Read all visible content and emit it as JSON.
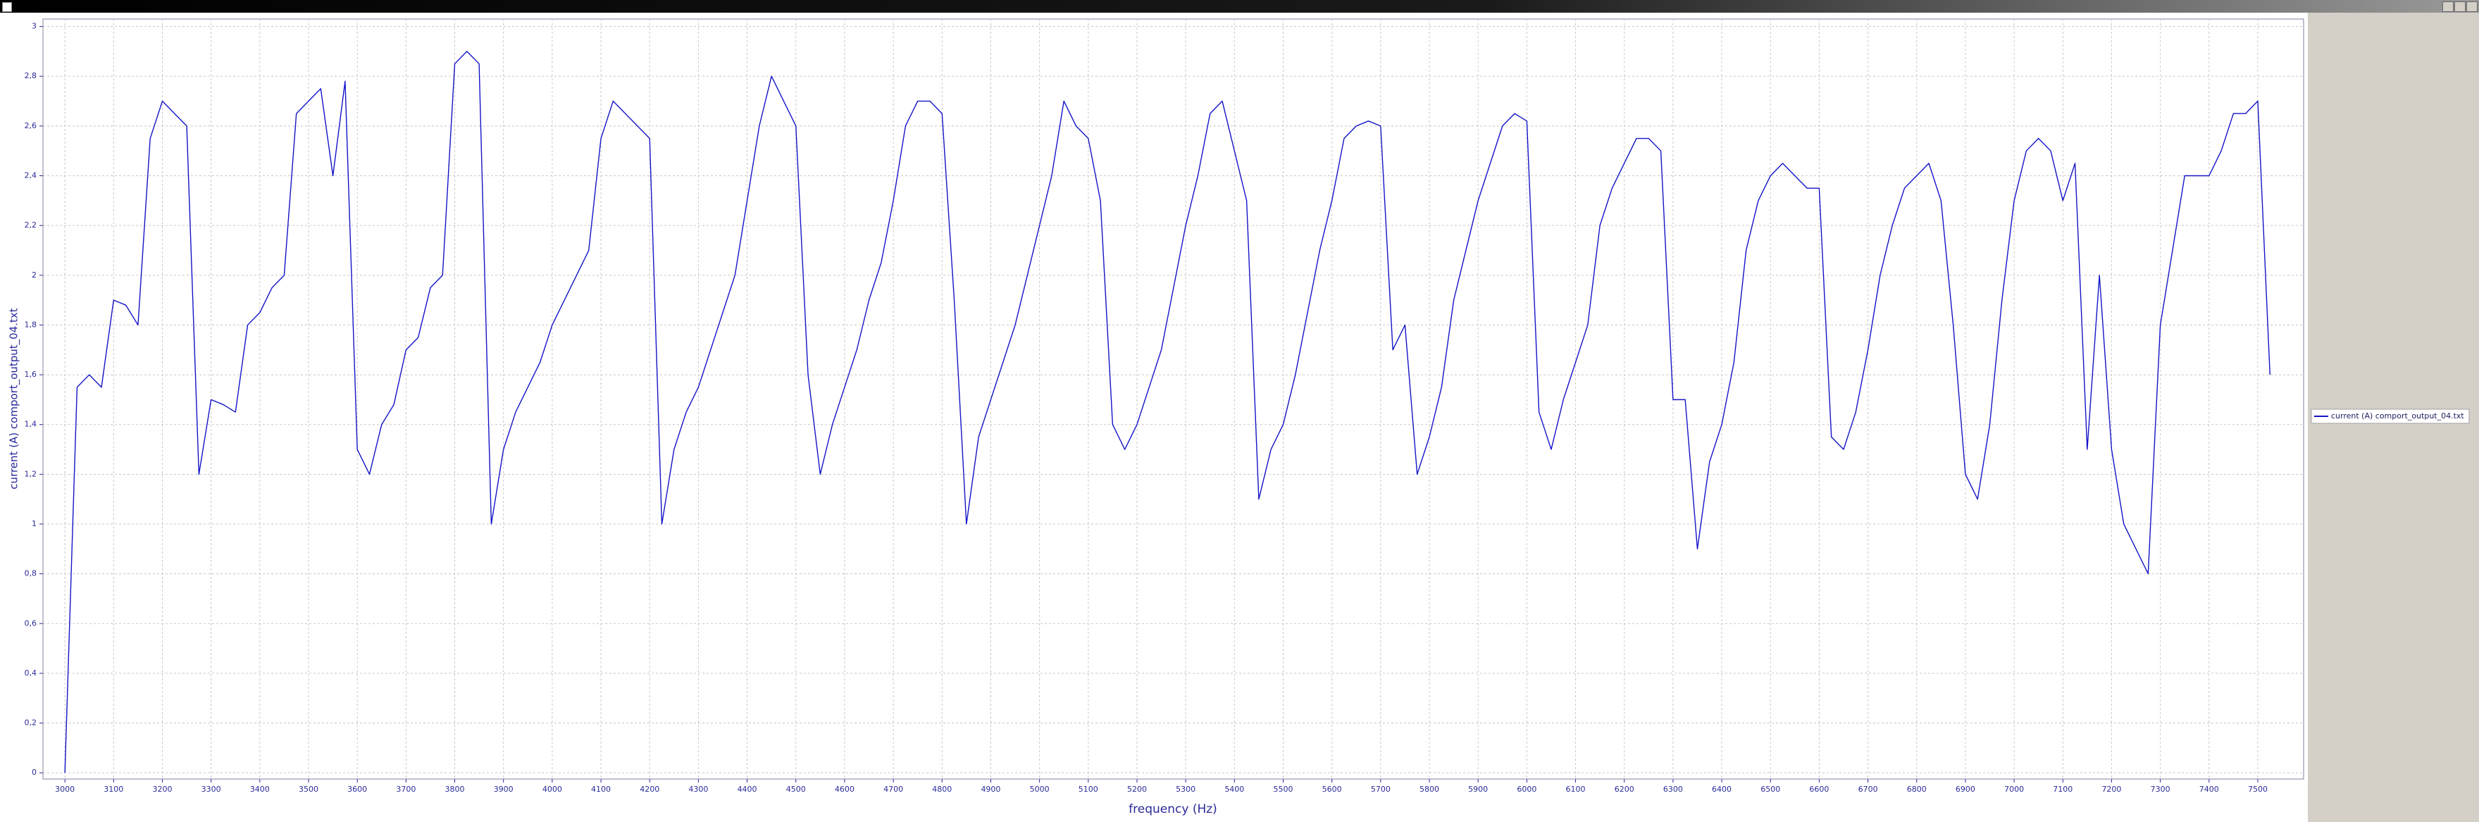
{
  "chart_data": {
    "type": "line",
    "x_label": "frequency (Hz)",
    "y_label": "current (A) comport_output_04.txt",
    "grid": true,
    "legend": "right",
    "x": [
      3000,
      3025,
      3050,
      3075,
      3100,
      3125,
      3150,
      3175,
      3200,
      3225,
      3250,
      3275,
      3300,
      3325,
      3350,
      3375,
      3400,
      3425,
      3450,
      3475,
      3500,
      3525,
      3550,
      3575,
      3600,
      3625,
      3650,
      3675,
      3700,
      3725,
      3750,
      3775,
      3800,
      3825,
      3850,
      3875,
      3900,
      3925,
      3950,
      3975,
      4000,
      4025,
      4050,
      4075,
      4100,
      4125,
      4150,
      4175,
      4200,
      4225,
      4250,
      4275,
      4300,
      4325,
      4350,
      4375,
      4400,
      4425,
      4450,
      4475,
      4500,
      4525,
      4550,
      4575,
      4600,
      4625,
      4650,
      4675,
      4700,
      4725,
      4750,
      4775,
      4800,
      4825,
      4850,
      4875,
      4900,
      4925,
      4950,
      4975,
      5000,
      5025,
      5050,
      5075,
      5100,
      5125,
      5150,
      5175,
      5200,
      5225,
      5250,
      5275,
      5300,
      5325,
      5350,
      5375,
      5400,
      5425,
      5450,
      5475,
      5500,
      5525,
      5550,
      5575,
      5600,
      5625,
      5650,
      5675,
      5700,
      5725,
      5750,
      5775,
      5800,
      5825,
      5850,
      5875,
      5900,
      5925,
      5950,
      5975,
      6000,
      6025,
      6050,
      6075,
      6100,
      6125,
      6150,
      6175,
      6200,
      6225,
      6250,
      6275,
      6300,
      6325,
      6350,
      6375,
      6400,
      6425,
      6450,
      6475,
      6500,
      6525,
      6550,
      6575,
      6600,
      6625,
      6650,
      6675,
      6700,
      6725,
      6750,
      6775,
      6800,
      6825,
      6850,
      6875,
      6900,
      6925,
      6950,
      6975,
      7000,
      7025,
      7050,
      7075,
      7100,
      7125,
      7150,
      7175,
      7200,
      7225,
      7250,
      7275,
      7300,
      7325,
      7350,
      7375,
      7400,
      7425,
      7450,
      7475,
      7500,
      7525
    ],
    "series": [
      {
        "name": "current (A) comport_output_04.txt",
        "color": "#1414c8",
        "values": [
          0,
          1.55,
          1.6,
          1.55,
          1.9,
          1.88,
          1.8,
          2.55,
          2.7,
          2.65,
          2.6,
          1.2,
          1.5,
          1.48,
          1.45,
          1.8,
          1.85,
          1.95,
          2.0,
          2.65,
          2.7,
          2.75,
          2.4,
          2.78,
          1.3,
          1.2,
          1.4,
          1.48,
          1.7,
          1.75,
          1.95,
          2.0,
          2.85,
          2.9,
          2.85,
          1.0,
          1.3,
          1.45,
          1.55,
          1.65,
          1.8,
          1.9,
          2.0,
          2.1,
          2.55,
          2.7,
          2.65,
          2.6,
          2.55,
          1.0,
          1.3,
          1.45,
          1.55,
          1.7,
          1.85,
          2.0,
          2.3,
          2.6,
          2.8,
          2.7,
          2.6,
          1.6,
          1.2,
          1.4,
          1.55,
          1.7,
          1.9,
          2.05,
          2.3,
          2.6,
          2.7,
          2.7,
          2.65,
          1.9,
          1.0,
          1.35,
          1.5,
          1.65,
          1.8,
          2.0,
          2.2,
          2.4,
          2.7,
          2.6,
          2.55,
          2.3,
          1.4,
          1.3,
          1.4,
          1.55,
          1.7,
          1.95,
          2.2,
          2.4,
          2.65,
          2.7,
          2.5,
          2.3,
          1.1,
          1.3,
          1.4,
          1.6,
          1.85,
          2.1,
          2.3,
          2.55,
          2.6,
          2.62,
          2.6,
          1.7,
          1.8,
          1.2,
          1.35,
          1.55,
          1.9,
          2.1,
          2.3,
          2.45,
          2.6,
          2.65,
          2.62,
          1.45,
          1.3,
          1.5,
          1.65,
          1.8,
          2.2,
          2.35,
          2.45,
          2.55,
          2.55,
          2.5,
          1.5,
          1.5,
          0.9,
          1.25,
          1.4,
          1.65,
          2.1,
          2.3,
          2.4,
          2.45,
          2.4,
          2.35,
          2.35,
          1.35,
          1.3,
          1.45,
          1.7,
          2.0,
          2.2,
          2.35,
          2.4,
          2.45,
          2.3,
          1.8,
          1.2,
          1.1,
          1.4,
          1.9,
          2.3,
          2.5,
          2.55,
          2.5,
          2.3,
          2.45,
          1.3,
          2.0,
          1.3,
          1.0,
          0.9,
          0.8,
          1.8,
          2.1,
          2.4,
          2.4,
          2.4,
          2.5,
          2.65,
          2.65,
          2.7,
          1.6
        ]
      }
    ],
    "xlim": [
      2955,
      7594
    ],
    "xticks": [
      3000,
      3100,
      3200,
      3300,
      3400,
      3500,
      3600,
      3700,
      3800,
      3900,
      4000,
      4100,
      4200,
      4300,
      4400,
      4500,
      4600,
      4700,
      4800,
      4900,
      5000,
      5100,
      5200,
      5300,
      5400,
      5500,
      5600,
      5700,
      5800,
      5900,
      6000,
      6100,
      6200,
      6300,
      6400,
      6500,
      6600,
      6700,
      6800,
      6900,
      7000,
      7100,
      7200,
      7300,
      7400,
      7500
    ],
    "ylim": [
      -0.025,
      3.03
    ],
    "yticks": [
      0,
      {
        "value": 0.2,
        "label": "0,2"
      },
      {
        "value": 0.4,
        "label": "0,4"
      },
      {
        "value": 0.6,
        "label": "0,6"
      },
      {
        "value": 0.8,
        "label": "0,8"
      },
      1,
      {
        "value": 1.2,
        "label": "1,2"
      },
      {
        "value": 1.4,
        "label": "1,4"
      },
      {
        "value": 1.6,
        "label": "1,6"
      },
      {
        "value": 1.8,
        "label": "1,8"
      },
      2,
      {
        "value": 2.2,
        "label": "2,2"
      },
      {
        "value": 2.4,
        "label": "2,4"
      },
      {
        "value": 2.6,
        "label": "2,6"
      },
      {
        "value": 2.8,
        "label": "2,8"
      },
      3
    ]
  }
}
